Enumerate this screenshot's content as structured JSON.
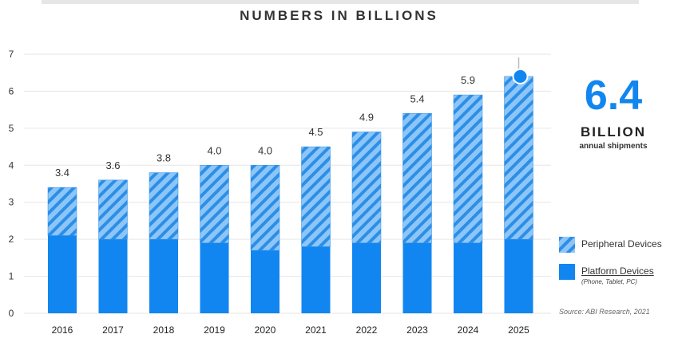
{
  "chart_data": {
    "type": "bar",
    "stacked": true,
    "title": "NUMBERS IN BILLIONS",
    "categories": [
      "2016",
      "2017",
      "2018",
      "2019",
      "2020",
      "2021",
      "2022",
      "2023",
      "2024",
      "2025"
    ],
    "series": [
      {
        "name": "Platform Devices",
        "note": "(Phone, Tablet, PC)",
        "color": "#1186f0",
        "pattern": "solid",
        "values": [
          2.1,
          2.0,
          2.0,
          1.9,
          1.7,
          1.8,
          1.9,
          1.9,
          1.9,
          2.0
        ]
      },
      {
        "name": "Peripheral Devices",
        "color": "#5aaaf5",
        "pattern": "diagonal-hatch",
        "values": [
          1.3,
          1.6,
          1.8,
          2.1,
          2.3,
          2.7,
          3.0,
          3.5,
          4.0,
          4.4
        ]
      }
    ],
    "totals": [
      "3.4",
      "3.6",
      "3.8",
      "4.0",
      "4.0",
      "4.5",
      "4.9",
      "5.4",
      "5.9",
      ""
    ],
    "ylim": [
      0,
      7
    ],
    "yticks": [
      0,
      1,
      2,
      3,
      4,
      5,
      6,
      7
    ],
    "grid": true,
    "legend_position": "right",
    "highlight": {
      "category": "2025",
      "value": "6.4",
      "unit": "BILLION",
      "subtitle": "annual shipments"
    },
    "source": "Source: ABI Research, 2021"
  }
}
